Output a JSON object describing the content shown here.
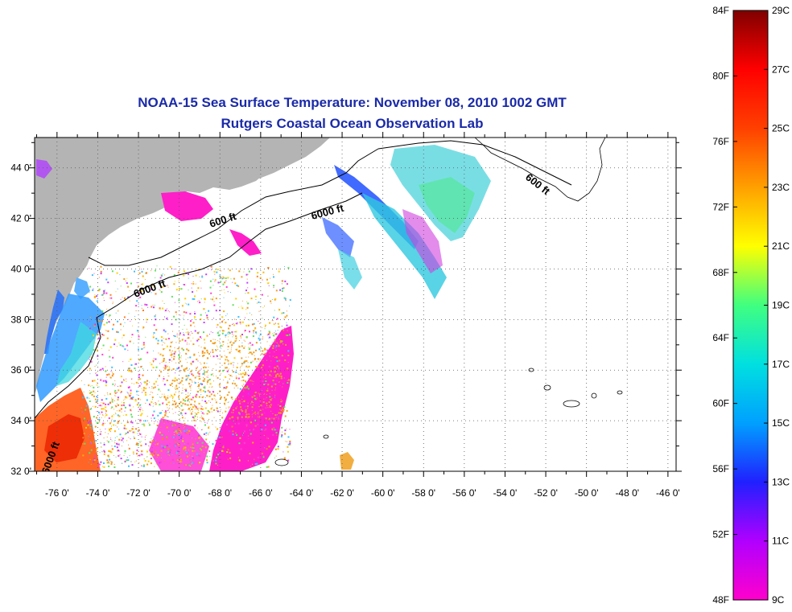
{
  "header": {
    "title": "NOAA-15 Sea Surface Temperature:  November 08, 2010 1002 GMT",
    "subtitle": "Rutgers Coastal Ocean Observation Lab"
  },
  "map": {
    "lon_ticks": [
      "-76 0'",
      "-74 0'",
      "-72 0'",
      "-70 0'",
      "-68 0'",
      "-66 0'",
      "-64 0'",
      "-62 0'",
      "-60 0'",
      "-58 0'",
      "-56 0'",
      "-54 0'",
      "-52 0'",
      "-50 0'",
      "-48 0'",
      "-46 0'"
    ],
    "lon_values": [
      -76,
      -74,
      -72,
      -70,
      -68,
      -66,
      -64,
      -62,
      -60,
      -58,
      -56,
      -54,
      -52,
      -50,
      -48,
      -46
    ],
    "lat_ticks": [
      "44 0'",
      "42 0'",
      "40 0'",
      "38 0'",
      "36 0'",
      "34 0'",
      "32 0'"
    ],
    "lat_values": [
      44,
      42,
      40,
      38,
      36,
      34,
      32
    ],
    "lon_range": [
      -77.1,
      -45.6
    ],
    "lat_range": [
      32,
      45.2
    ],
    "contour_labels": [
      "600 ft",
      "6000 ft",
      "6000 ft",
      "600 ft",
      "6000 ft"
    ],
    "land_color": "#b4b4b4",
    "grid": "dotted"
  },
  "colorbar": {
    "fahrenheit_labels": [
      "84F",
      "80F",
      "76F",
      "72F",
      "68F",
      "64F",
      "60F",
      "56F",
      "52F",
      "48F"
    ],
    "celsius_labels": [
      "29C",
      "27C",
      "25C",
      "23C",
      "21C",
      "19C",
      "17C",
      "15C",
      "13C",
      "11C",
      "9C"
    ],
    "colors": [
      "#ff00cc",
      "#b000ff",
      "#2020ff",
      "#00a0ff",
      "#00e0e0",
      "#40ff80",
      "#ffff00",
      "#ffa000",
      "#ff4000",
      "#ff0000",
      "#800000"
    ]
  }
}
